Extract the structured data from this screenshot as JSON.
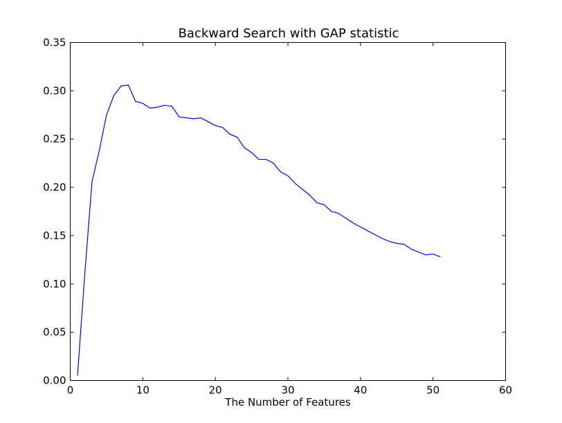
{
  "chart_data": {
    "type": "line",
    "title": "Backward Search with GAP statistic",
    "xlabel": "The Number of Features",
    "ylabel": "",
    "xlim": [
      0,
      60
    ],
    "ylim": [
      0,
      0.35
    ],
    "xticks": [
      0,
      10,
      20,
      30,
      40,
      50,
      60
    ],
    "xtick_labels": [
      "0",
      "10",
      "20",
      "30",
      "40",
      "50",
      "60"
    ],
    "yticks": [
      0,
      0.05,
      0.1,
      0.15,
      0.2,
      0.25,
      0.3,
      0.35
    ],
    "ytick_labels": [
      "0.00",
      "0.05",
      "0.10",
      "0.15",
      "0.20",
      "0.25",
      "0.30",
      "0.35"
    ],
    "grid": false,
    "series": [
      {
        "color": "#0000ff",
        "x": [
          1,
          2,
          3,
          4,
          5,
          6,
          7,
          8,
          9,
          10,
          11,
          12,
          13,
          14,
          15,
          16,
          17,
          18,
          19,
          20,
          21,
          22,
          23,
          24,
          25,
          26,
          27,
          28,
          29,
          30,
          31,
          32,
          33,
          34,
          35,
          36,
          37,
          38,
          39,
          40,
          41,
          42,
          43,
          44,
          45,
          46,
          47,
          48,
          49,
          50,
          51
        ],
        "y": [
          0.005,
          0.11,
          0.206,
          0.238,
          0.275,
          0.295,
          0.305,
          0.306,
          0.289,
          0.287,
          0.282,
          0.283,
          0.285,
          0.284,
          0.273,
          0.272,
          0.271,
          0.272,
          0.268,
          0.264,
          0.262,
          0.255,
          0.252,
          0.241,
          0.236,
          0.229,
          0.229,
          0.225,
          0.216,
          0.212,
          0.204,
          0.198,
          0.192,
          0.184,
          0.182,
          0.175,
          0.173,
          0.168,
          0.163,
          0.159,
          0.155,
          0.151,
          0.147,
          0.144,
          0.142,
          0.141,
          0.136,
          0.133,
          0.13,
          0.131,
          0.128
        ]
      }
    ]
  }
}
